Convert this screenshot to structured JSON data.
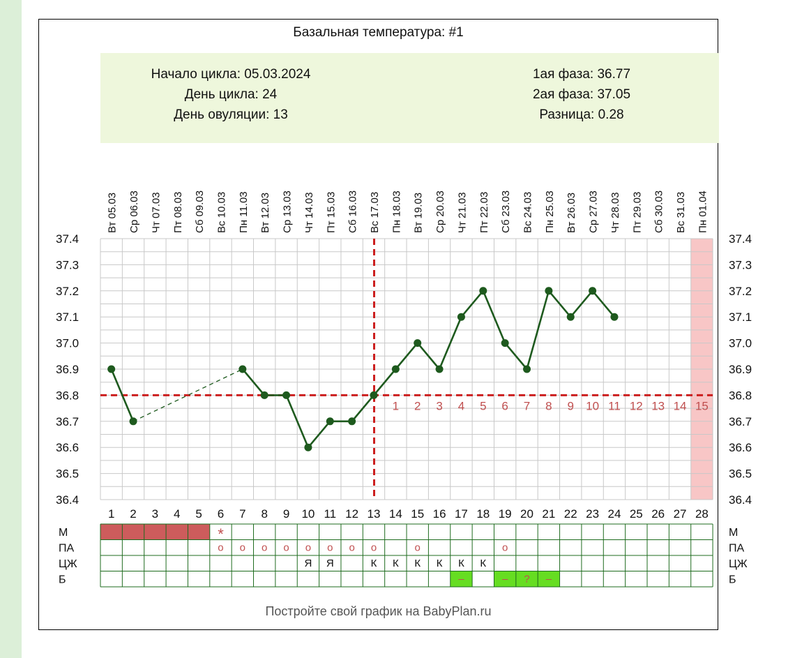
{
  "chart_data": {
    "type": "line",
    "title": "Базальная температура: #1",
    "info": {
      "left": [
        "Начало цикла: 05.03.2024",
        "День цикла: 24",
        "День овуляции: 13"
      ],
      "right": [
        "1ая фаза: 36.77",
        "2ая фаза: 37.05",
        "Разница: 0.28"
      ]
    },
    "dates": [
      "Вт  05.03",
      "Ср  06.03",
      "Чт  07.03",
      "Пт  08.03",
      "Сб  09.03",
      "Вс  10.03",
      "Пн  11.03",
      "Вт  12.03",
      "Ср  13.03",
      "Чт  14.03",
      "Пт  15.03",
      "Сб  16.03",
      "Вс  17.03",
      "Пн  18.03",
      "Вт  19.03",
      "Ср  20.03",
      "Чт  21.03",
      "Пт  22.03",
      "Сб  23.03",
      "Вс  24.03",
      "Пн  25.03",
      "Вт  26.03",
      "Ср  27.03",
      "Чт  28.03",
      "Пт  29.03",
      "Сб  30.03",
      "Вс  31.03",
      "Пн  01.04"
    ],
    "cycle_days": [
      "1",
      "2",
      "3",
      "4",
      "5",
      "6",
      "7",
      "8",
      "9",
      "10",
      "11",
      "12",
      "13",
      "14",
      "15",
      "16",
      "17",
      "18",
      "19",
      "20",
      "21",
      "22",
      "23",
      "24",
      "25",
      "26",
      "27",
      "28"
    ],
    "y_ticks": [
      "37.4",
      "37.3",
      "37.2",
      "37.1",
      "37.0",
      "36.9",
      "36.8",
      "36.7",
      "36.6",
      "36.5",
      "36.4"
    ],
    "ylim": [
      36.4,
      37.4
    ],
    "values": [
      36.9,
      36.7,
      null,
      null,
      null,
      null,
      36.9,
      36.8,
      36.8,
      36.6,
      36.7,
      36.7,
      36.8,
      36.9,
      37.0,
      36.9,
      37.1,
      37.2,
      37.0,
      36.9,
      37.2,
      37.1,
      37.2,
      37.1,
      null,
      null,
      null,
      null
    ],
    "coverline": 36.8,
    "ovulation_day": 13,
    "luteal_labels": [
      "1",
      "2",
      "3",
      "4",
      "5",
      "6",
      "7",
      "8",
      "9",
      "10",
      "11",
      "12",
      "13",
      "14",
      "15"
    ],
    "luteal_start_day": 14,
    "highlight_day": 28,
    "rows": [
      {
        "label": "М",
        "cells": [
          "",
          "",
          "",
          "",
          "",
          "*",
          "",
          "",
          "",
          "",
          "",
          "",
          "",
          "",
          "",
          "",
          "",
          "",
          "",
          "",
          "",
          "",
          "",
          "",
          "",
          "",
          "",
          ""
        ],
        "fill_days": [
          1,
          2,
          3,
          4,
          5
        ]
      },
      {
        "label": "ПА",
        "cells": [
          "",
          "",
          "",
          "",
          "",
          "o",
          "o",
          "o",
          "o",
          "o",
          "o",
          "o",
          "o",
          "",
          "o",
          "",
          "",
          "",
          "o",
          "",
          "",
          "",
          "",
          "",
          "",
          "",
          "",
          ""
        ],
        "fill_days": []
      },
      {
        "label": "ЦЖ",
        "cells": [
          "",
          "",
          "",
          "",
          "",
          "",
          "",
          "",
          "",
          "Я",
          "Я",
          "",
          "К",
          "К",
          "К",
          "К",
          "К",
          "К",
          "",
          "",
          "",
          "",
          "",
          "",
          "",
          "",
          "",
          ""
        ],
        "fill_days": []
      },
      {
        "label": "Б",
        "cells": [
          "",
          "",
          "",
          "",
          "",
          "",
          "",
          "",
          "",
          "",
          "",
          "",
          "",
          "",
          "",
          "",
          "–",
          "",
          "–",
          "?",
          "–",
          "",
          "",
          "",
          "",
          "",
          "",
          ""
        ],
        "fill_days": [
          17,
          19,
          20,
          21
        ]
      }
    ],
    "colors": {
      "line": "#1e5a1e",
      "point": "#1e5a1e",
      "coverline": "#cc1f1f",
      "grid": "#c8c8c8",
      "grid_rows": "#1e6b1e",
      "menses": "#cd5c5c",
      "luteal_text": "#c05050",
      "highlight": "#f8c6c6",
      "b_fill": "#66dd22",
      "info_bg": "#eef7dc"
    },
    "footer": "Постройте свой график на BabyPlan.ru"
  }
}
